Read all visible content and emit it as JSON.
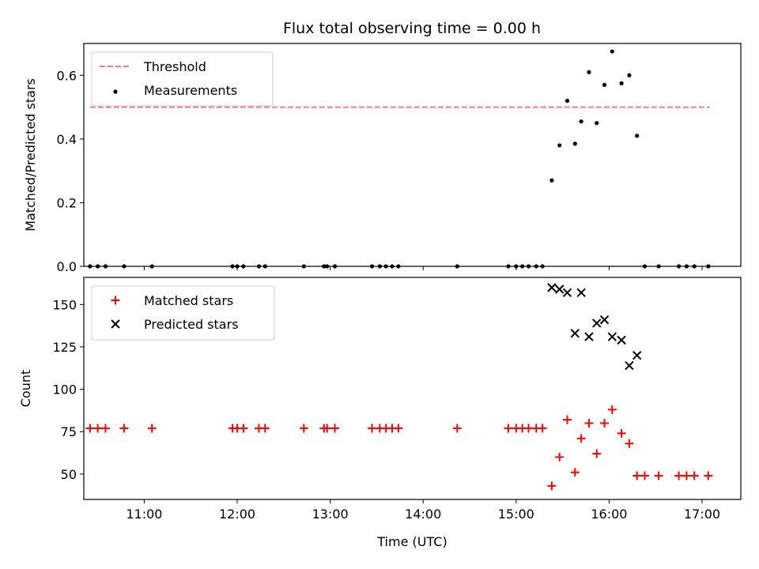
{
  "chart_data": [
    {
      "type": "scatter",
      "title": "Flux total observing time = 0.00 h",
      "xlabel": "",
      "ylabel": "Matched/Predicted stars",
      "xlim": [
        "10:21",
        "17:25"
      ],
      "ylim": [
        0,
        0.7
      ],
      "yticks": [
        "0.0",
        "0.2",
        "0.4",
        "0.6"
      ],
      "ytick_values": [
        0.0,
        0.2,
        0.4,
        0.6
      ],
      "xtick_values": [
        "11:00",
        "12:00",
        "13:00",
        "14:00",
        "15:00",
        "16:00",
        "17:00"
      ],
      "grid": false,
      "legend_position": "upper-left",
      "threshold": {
        "name": "Threshold",
        "value": 0.5,
        "x_start": "10:25",
        "x_end": "17:05",
        "color": "#f08080"
      },
      "series": [
        {
          "name": "Measurements",
          "color": "#000000",
          "marker": "dot",
          "points": [
            [
              "10:25",
              0
            ],
            [
              "10:30",
              0
            ],
            [
              "10:35",
              0
            ],
            [
              "10:47",
              0
            ],
            [
              "11:05",
              0
            ],
            [
              "11:57",
              0
            ],
            [
              "12:00",
              0
            ],
            [
              "12:04",
              0
            ],
            [
              "12:14",
              0
            ],
            [
              "12:18",
              0
            ],
            [
              "12:43",
              0
            ],
            [
              "12:56",
              0
            ],
            [
              "12:58",
              0
            ],
            [
              "13:03",
              0
            ],
            [
              "13:27",
              0
            ],
            [
              "13:32",
              0
            ],
            [
              "13:36",
              0
            ],
            [
              "13:40",
              0
            ],
            [
              "13:44",
              0
            ],
            [
              "14:22",
              0
            ],
            [
              "14:55",
              0
            ],
            [
              "15:00",
              0
            ],
            [
              "15:04",
              0
            ],
            [
              "15:08",
              0
            ],
            [
              "15:13",
              0
            ],
            [
              "15:17",
              0
            ],
            [
              "15:23",
              0.27
            ],
            [
              "15:28",
              0.38
            ],
            [
              "15:33",
              0.52
            ],
            [
              "15:38",
              0.385
            ],
            [
              "15:42",
              0.455
            ],
            [
              "15:47",
              0.61
            ],
            [
              "15:52",
              0.45
            ],
            [
              "15:57",
              0.57
            ],
            [
              "16:02",
              0.675
            ],
            [
              "16:08",
              0.575
            ],
            [
              "16:13",
              0.6
            ],
            [
              "16:18",
              0.41
            ],
            [
              "16:23",
              0
            ],
            [
              "16:32",
              0
            ],
            [
              "16:45",
              0
            ],
            [
              "16:50",
              0
            ],
            [
              "16:55",
              0
            ],
            [
              "17:04",
              0
            ]
          ]
        }
      ]
    },
    {
      "type": "scatter",
      "title": "",
      "xlabel": "Time (UTC)",
      "ylabel": "Count",
      "xlim": [
        "10:21",
        "17:25"
      ],
      "ylim": [
        35,
        166
      ],
      "yticks": [
        "50",
        "75",
        "100",
        "125",
        "150"
      ],
      "ytick_values": [
        50,
        75,
        100,
        125,
        150
      ],
      "xticks": [
        "11:00",
        "12:00",
        "13:00",
        "14:00",
        "15:00",
        "16:00",
        "17:00"
      ],
      "grid": false,
      "legend_position": "upper-left",
      "series": [
        {
          "name": "Matched stars",
          "color": "#ff0000",
          "marker": "plus",
          "points": [
            [
              "10:25",
              77
            ],
            [
              "10:30",
              77
            ],
            [
              "10:35",
              77
            ],
            [
              "10:47",
              77
            ],
            [
              "11:05",
              77
            ],
            [
              "11:57",
              77
            ],
            [
              "12:00",
              77
            ],
            [
              "12:04",
              77
            ],
            [
              "12:14",
              77
            ],
            [
              "12:18",
              77
            ],
            [
              "12:43",
              77
            ],
            [
              "12:56",
              77
            ],
            [
              "12:58",
              77
            ],
            [
              "13:03",
              77
            ],
            [
              "13:27",
              77
            ],
            [
              "13:32",
              77
            ],
            [
              "13:36",
              77
            ],
            [
              "13:40",
              77
            ],
            [
              "13:44",
              77
            ],
            [
              "14:22",
              77
            ],
            [
              "14:55",
              77
            ],
            [
              "15:00",
              77
            ],
            [
              "15:04",
              77
            ],
            [
              "15:08",
              77
            ],
            [
              "15:13",
              77
            ],
            [
              "15:17",
              77
            ],
            [
              "15:23",
              43
            ],
            [
              "15:28",
              60
            ],
            [
              "15:33",
              82
            ],
            [
              "15:38",
              51
            ],
            [
              "15:42",
              71
            ],
            [
              "15:47",
              80
            ],
            [
              "15:52",
              62
            ],
            [
              "15:57",
              80
            ],
            [
              "16:02",
              88
            ],
            [
              "16:08",
              74
            ],
            [
              "16:13",
              68
            ],
            [
              "16:18",
              49
            ],
            [
              "16:23",
              49
            ],
            [
              "16:32",
              49
            ],
            [
              "16:45",
              49
            ],
            [
              "16:50",
              49
            ],
            [
              "16:55",
              49
            ],
            [
              "17:04",
              49
            ]
          ]
        },
        {
          "name": "Predicted stars",
          "color": "#000000",
          "marker": "x",
          "points": [
            [
              "15:23",
              160
            ],
            [
              "15:28",
              159
            ],
            [
              "15:33",
              157
            ],
            [
              "15:38",
              133
            ],
            [
              "15:42",
              157
            ],
            [
              "15:47",
              131
            ],
            [
              "15:52",
              139
            ],
            [
              "15:57",
              141
            ],
            [
              "16:02",
              131
            ],
            [
              "16:08",
              129
            ],
            [
              "16:13",
              114
            ],
            [
              "16:18",
              120
            ]
          ]
        }
      ]
    }
  ]
}
